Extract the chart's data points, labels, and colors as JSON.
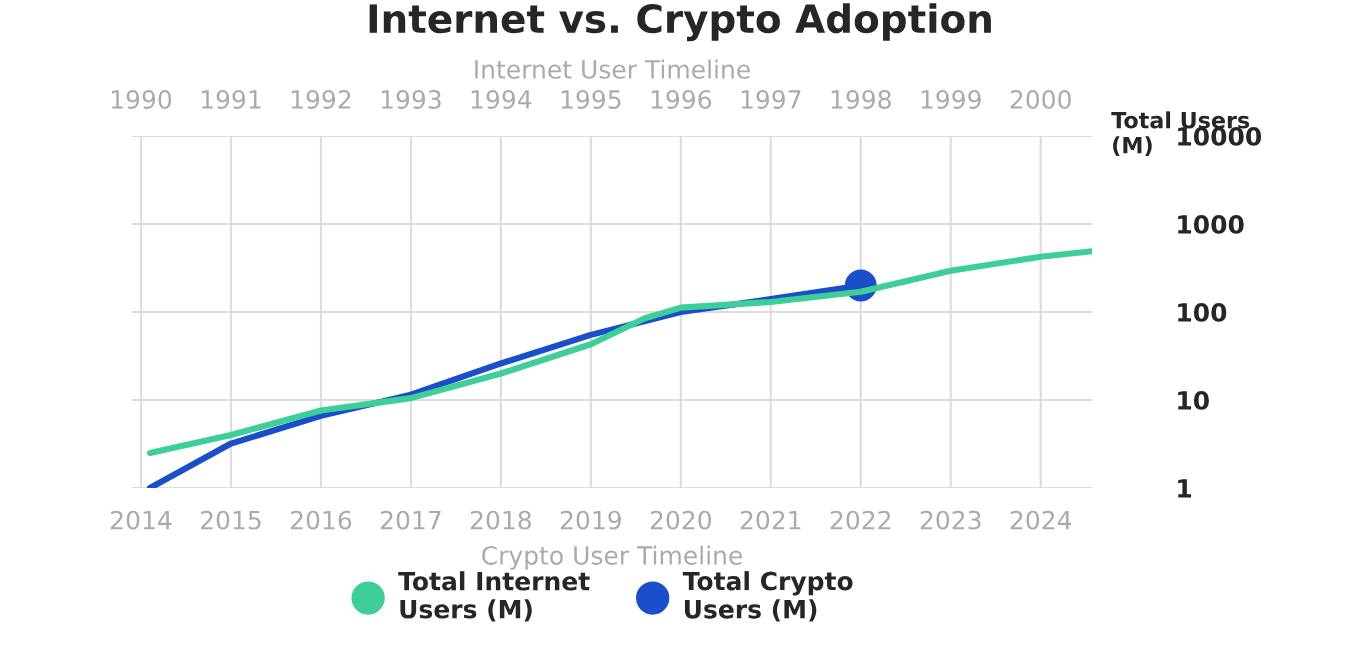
{
  "chart_data": {
    "type": "line",
    "title": "Internet vs. Crypto Adoption",
    "xlabel": "Crypto User Timeline",
    "x2label": "Internet User Timeline",
    "ylabel": "Total Users\n(M)",
    "xlim": [
      2013.9,
      2024.57
    ],
    "xticks": [
      2014,
      2015,
      2016,
      2017,
      2018,
      2019,
      2020,
      2021,
      2022,
      2023,
      2024
    ],
    "x2lim": [
      1989.9,
      2000.57
    ],
    "x2ticks": [
      1990,
      1991,
      1992,
      1993,
      1994,
      1995,
      1996,
      1997,
      1998,
      1999,
      2000
    ],
    "log": "y",
    "ylim": [
      1,
      10000
    ],
    "yticks": [
      1,
      10,
      100,
      1000,
      10000
    ],
    "grid": true,
    "legend": "bottom",
    "marker": "none",
    "line_style": "solid",
    "series": [
      {
        "name": "Total Internet\nUsers (M)",
        "color": "#3ecf98",
        "axis": "x2",
        "x": [
          1990.1,
          1991,
          1992,
          1993,
          1994,
          1995,
          1995.6,
          1996,
          1997,
          1998,
          1999,
          2000,
          2000.57
        ],
        "values": [
          2.5,
          4,
          7.6,
          10.5,
          20,
          43,
          85,
          112,
          130,
          170,
          295,
          425,
          490
        ]
      },
      {
        "name": "Total Crypto\nUsers (M)",
        "color": "#1a4fc9",
        "x": [
          2014.1,
          2015,
          2016,
          2017,
          2018,
          2019,
          2020,
          2021,
          2022
        ],
        "values": [
          1,
          3.2,
          6.6,
          11.5,
          26,
          55,
          100,
          140,
          200
        ]
      },
      {
        "type": "scatter",
        "marker": "circle",
        "color": "#1a4fc9",
        "x": [
          2022
        ],
        "values": [
          200
        ]
      }
    ]
  }
}
